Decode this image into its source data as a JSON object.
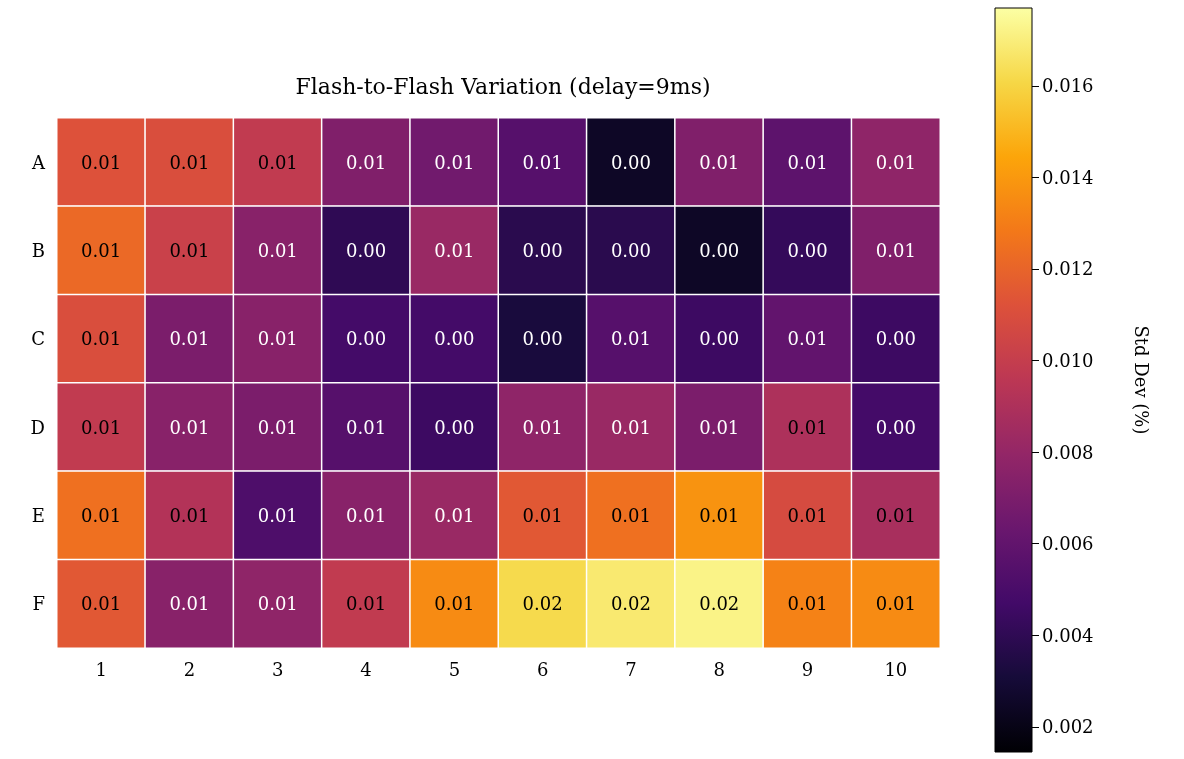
{
  "chart_data": {
    "type": "heatmap",
    "title": "Flash-to-Flash Variation (delay=9ms)",
    "clabel": "Std Dev (%)",
    "categories": [
      "1",
      "2",
      "3",
      "4",
      "5",
      "6",
      "7",
      "8",
      "9",
      "10"
    ],
    "y_categories": [
      "A",
      "B",
      "C",
      "D",
      "E",
      "F"
    ],
    "cells": [
      [
        0.0112,
        0.011,
        0.0098,
        0.0072,
        0.0066,
        0.0055,
        0.0025,
        0.0072,
        0.0058,
        0.0078
      ],
      [
        0.0122,
        0.0102,
        0.0075,
        0.004,
        0.0082,
        0.0038,
        0.0038,
        0.0025,
        0.0042,
        0.0072
      ],
      [
        0.011,
        0.007,
        0.0075,
        0.0048,
        0.0048,
        0.0032,
        0.0055,
        0.0045,
        0.006,
        0.0045
      ],
      [
        0.0098,
        0.0075,
        0.007,
        0.0055,
        0.0045,
        0.0078,
        0.0082,
        0.007,
        0.009,
        0.0048
      ],
      [
        0.0125,
        0.0092,
        0.0052,
        0.0075,
        0.0082,
        0.0115,
        0.0125,
        0.0138,
        0.0108,
        0.0088
      ],
      [
        0.0115,
        0.0075,
        0.0078,
        0.0098,
        0.0135,
        0.0162,
        0.0168,
        0.0172,
        0.0132,
        0.0135
      ]
    ],
    "cell_labels": [
      [
        "0.01",
        "0.01",
        "0.01",
        "0.01",
        "0.01",
        "0.01",
        "0.00",
        "0.01",
        "0.01",
        "0.01"
      ],
      [
        "0.01",
        "0.01",
        "0.01",
        "0.00",
        "0.01",
        "0.00",
        "0.00",
        "0.00",
        "0.00",
        "0.01"
      ],
      [
        "0.01",
        "0.01",
        "0.01",
        "0.00",
        "0.00",
        "0.00",
        "0.01",
        "0.00",
        "0.01",
        "0.00"
      ],
      [
        "0.01",
        "0.01",
        "0.01",
        "0.01",
        "0.00",
        "0.01",
        "0.01",
        "0.01",
        "0.01",
        "0.00"
      ],
      [
        "0.01",
        "0.01",
        "0.01",
        "0.01",
        "0.01",
        "0.01",
        "0.01",
        "0.01",
        "0.01",
        "0.01"
      ],
      [
        "0.01",
        "0.01",
        "0.01",
        "0.01",
        "0.01",
        "0.02",
        "0.02",
        "0.02",
        "0.01",
        "0.01"
      ]
    ],
    "clim": [
      0.00145,
      0.0177
    ],
    "cticks": [
      0.002,
      0.004,
      0.006,
      0.008,
      {
        "value": 0.01,
        "label": "0.010"
      },
      0.012,
      0.014,
      0.016
    ]
  }
}
